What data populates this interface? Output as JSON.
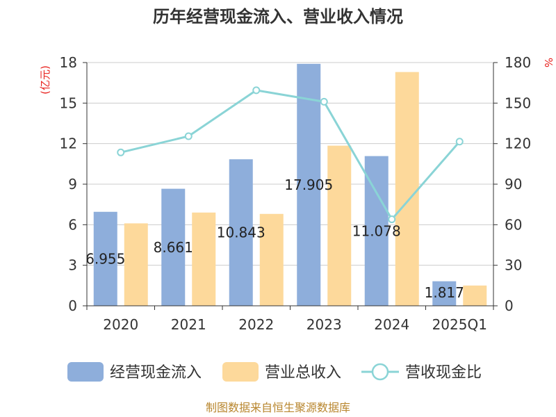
{
  "chart_data": {
    "type": "bar",
    "title": "历年经营现金流入、营业收入情况",
    "left_unit": "(亿元)",
    "right_unit": "%",
    "categories": [
      "2020",
      "2021",
      "2022",
      "2023",
      "2024",
      "2025Q1"
    ],
    "left_axis": {
      "ylim": [
        0,
        18
      ],
      "ticks": [
        "0",
        "3",
        "6",
        "9",
        "12",
        "15",
        "18"
      ]
    },
    "right_axis": {
      "ylim": [
        0,
        180
      ],
      "ticks": [
        "0",
        "30",
        "60",
        "90",
        "120",
        "150",
        "180"
      ]
    },
    "grid": true,
    "series": [
      {
        "name": "经营现金流入",
        "type": "bar",
        "axis": "left",
        "color": "#8eaedb",
        "values": [
          6.955,
          8.661,
          10.843,
          17.905,
          11.078,
          1.817
        ],
        "labels": [
          "6.955",
          "8.661",
          "10.843",
          "17.905",
          "11.078",
          "1.817"
        ]
      },
      {
        "name": "营业总收入",
        "type": "bar",
        "axis": "left",
        "color": "#fdd99b",
        "values": [
          6.1,
          6.9,
          6.8,
          11.85,
          17.3,
          1.5
        ]
      },
      {
        "name": "营收现金比",
        "type": "line",
        "axis": "right",
        "color": "#8ad4d6",
        "values": [
          113.5,
          125.5,
          159.5,
          151.0,
          64.0,
          121.5
        ]
      }
    ],
    "legend_position": "bottom",
    "source": "制图数据来自恒生聚源数据库"
  }
}
